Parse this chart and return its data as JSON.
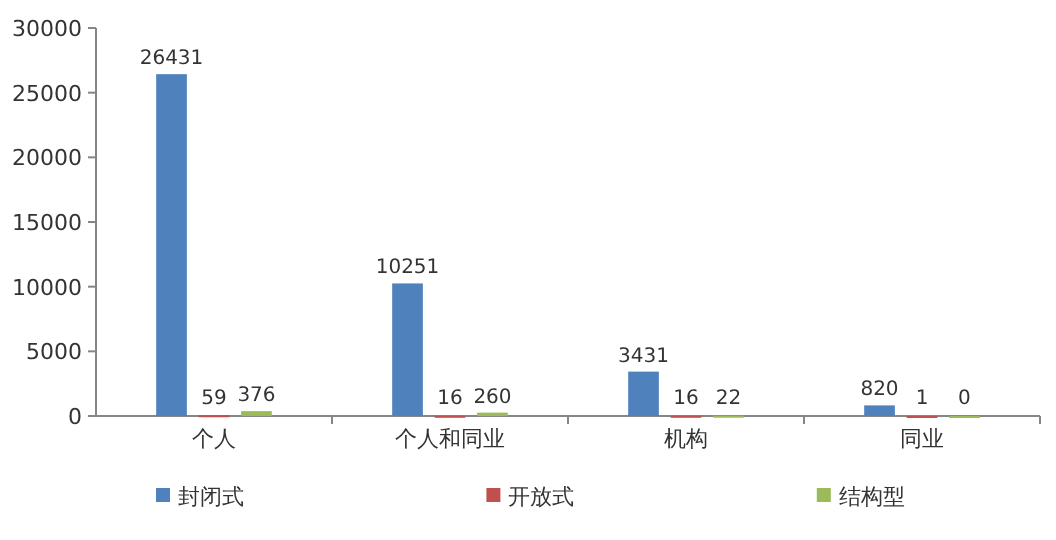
{
  "chart_data": {
    "type": "bar",
    "categories": [
      "个人",
      "个人和同业",
      "机构",
      "同业"
    ],
    "series": [
      {
        "name": "封闭式",
        "color": "#4f81bd",
        "values": [
          26431,
          10251,
          3431,
          820
        ]
      },
      {
        "name": "开放式",
        "color": "#c0504d",
        "values": [
          59,
          16,
          16,
          1
        ]
      },
      {
        "name": "结构型",
        "color": "#9bbb59",
        "values": [
          376,
          260,
          22,
          0
        ]
      }
    ],
    "ylim": [
      0,
      30000
    ],
    "yticks": [
      0,
      5000,
      10000,
      15000,
      20000,
      25000,
      30000
    ],
    "grid": false,
    "legend": "bottom",
    "data_labels": true
  }
}
